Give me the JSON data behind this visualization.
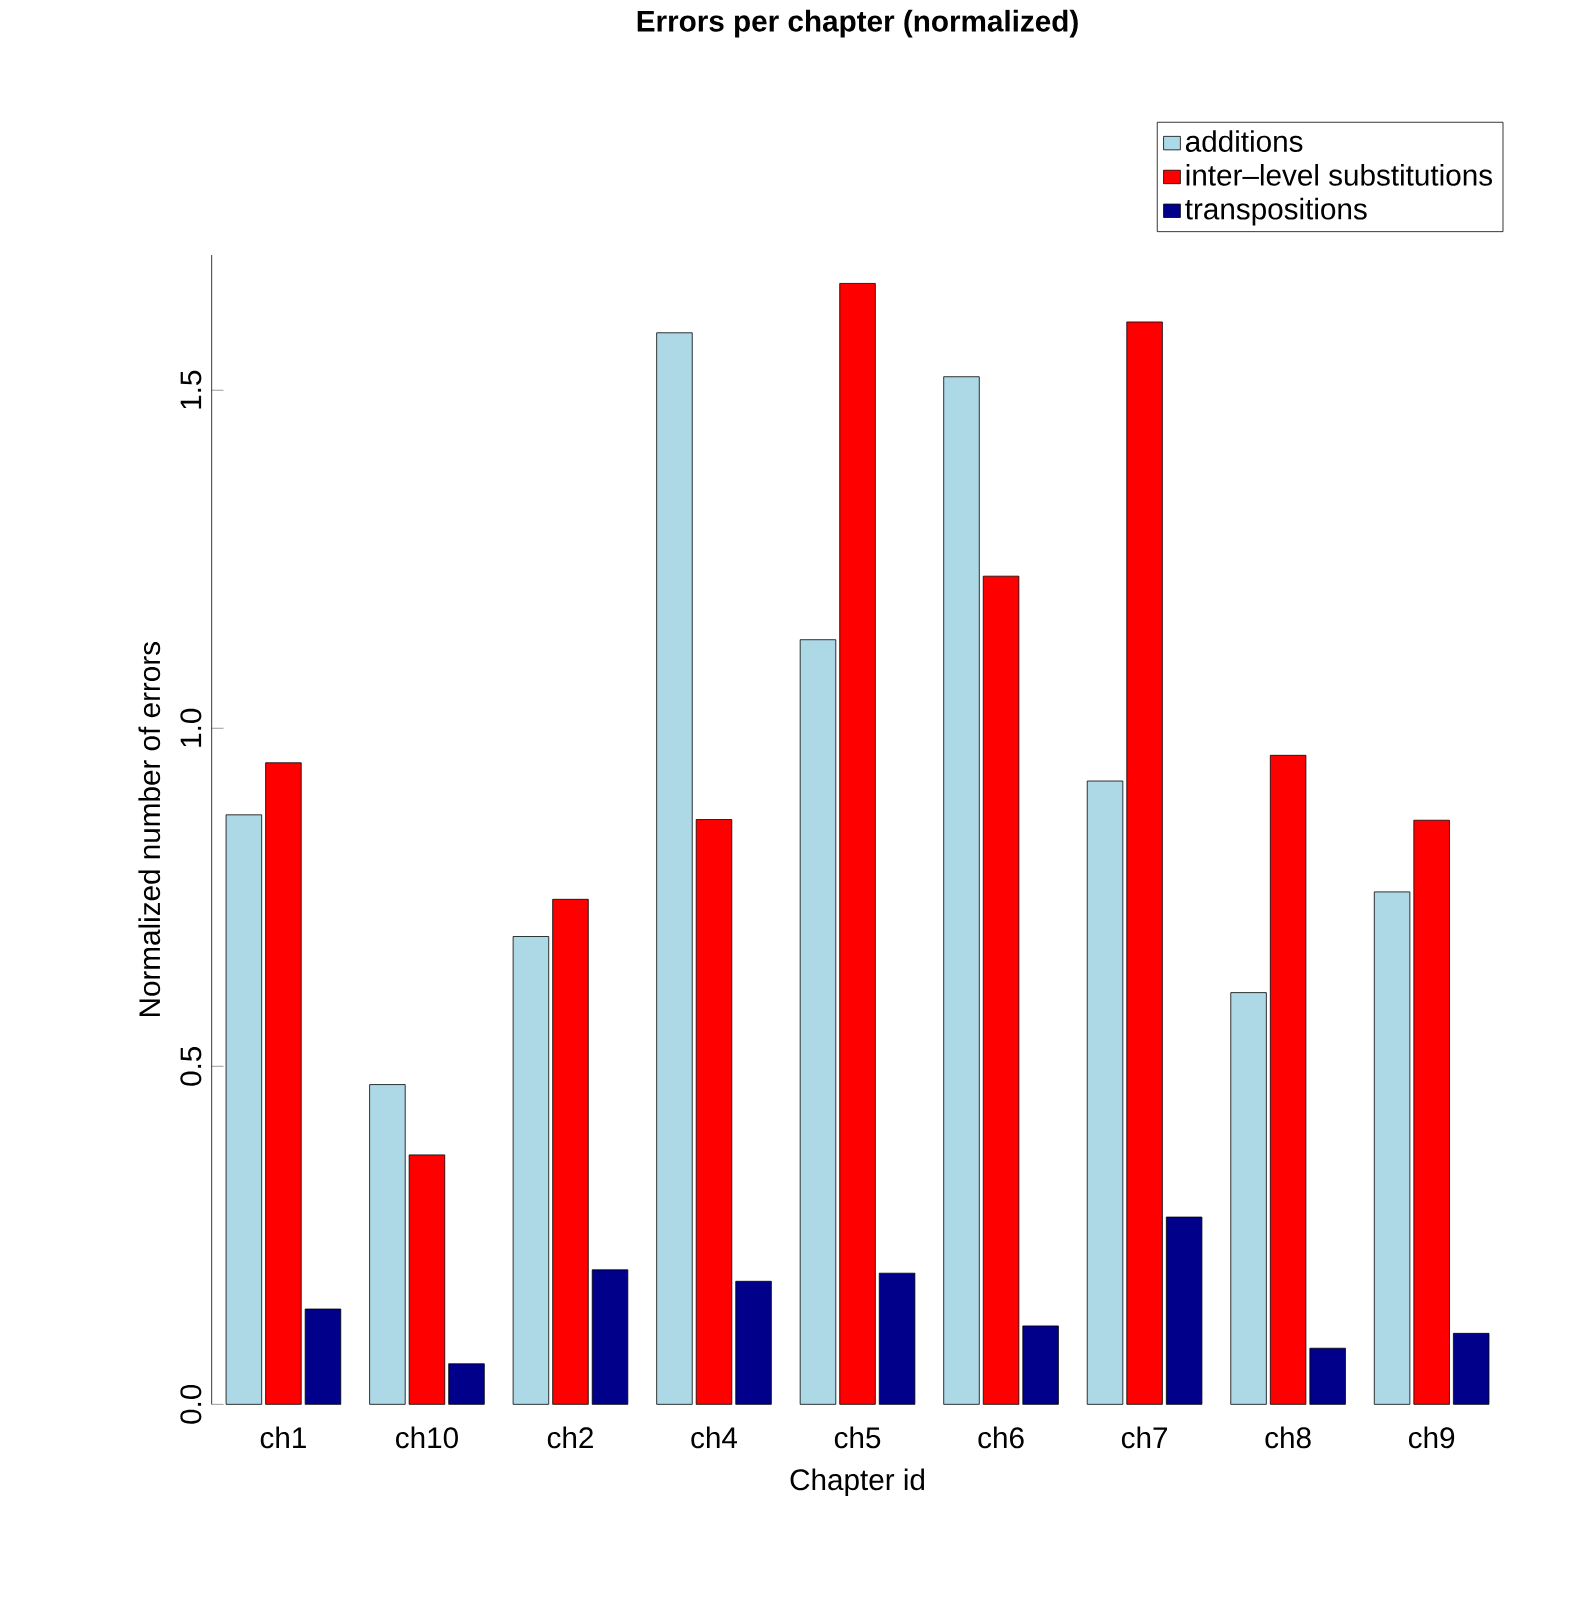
{
  "chart_data": {
    "type": "bar",
    "title": "Errors per chapter (normalized)",
    "xlabel": "Chapter id",
    "ylabel": "Normalized number of errors",
    "categories": [
      "ch1",
      "ch10",
      "ch2",
      "ch4",
      "ch5",
      "ch6",
      "ch7",
      "ch8",
      "ch9"
    ],
    "series": [
      {
        "name": "additions",
        "color": "#add8e6",
        "values": [
          0.872,
          0.473,
          0.692,
          1.585,
          1.131,
          1.52,
          0.922,
          0.609,
          0.758
        ]
      },
      {
        "name": "inter–level substitutions",
        "color": "#ff0000",
        "values": [
          0.949,
          0.369,
          0.747,
          0.865,
          1.658,
          1.225,
          1.601,
          0.96,
          0.864
        ]
      },
      {
        "name": "transpositions",
        "color": "#00008b",
        "values": [
          0.141,
          0.06,
          0.199,
          0.182,
          0.194,
          0.116,
          0.277,
          0.083,
          0.105
        ]
      }
    ],
    "ylim": [
      0,
      1.7
    ],
    "yticks": [
      {
        "value": 0,
        "label": "0.0"
      },
      0.5,
      {
        "value": 1,
        "label": "1.0"
      },
      1.5
    ],
    "legend": "top right"
  }
}
